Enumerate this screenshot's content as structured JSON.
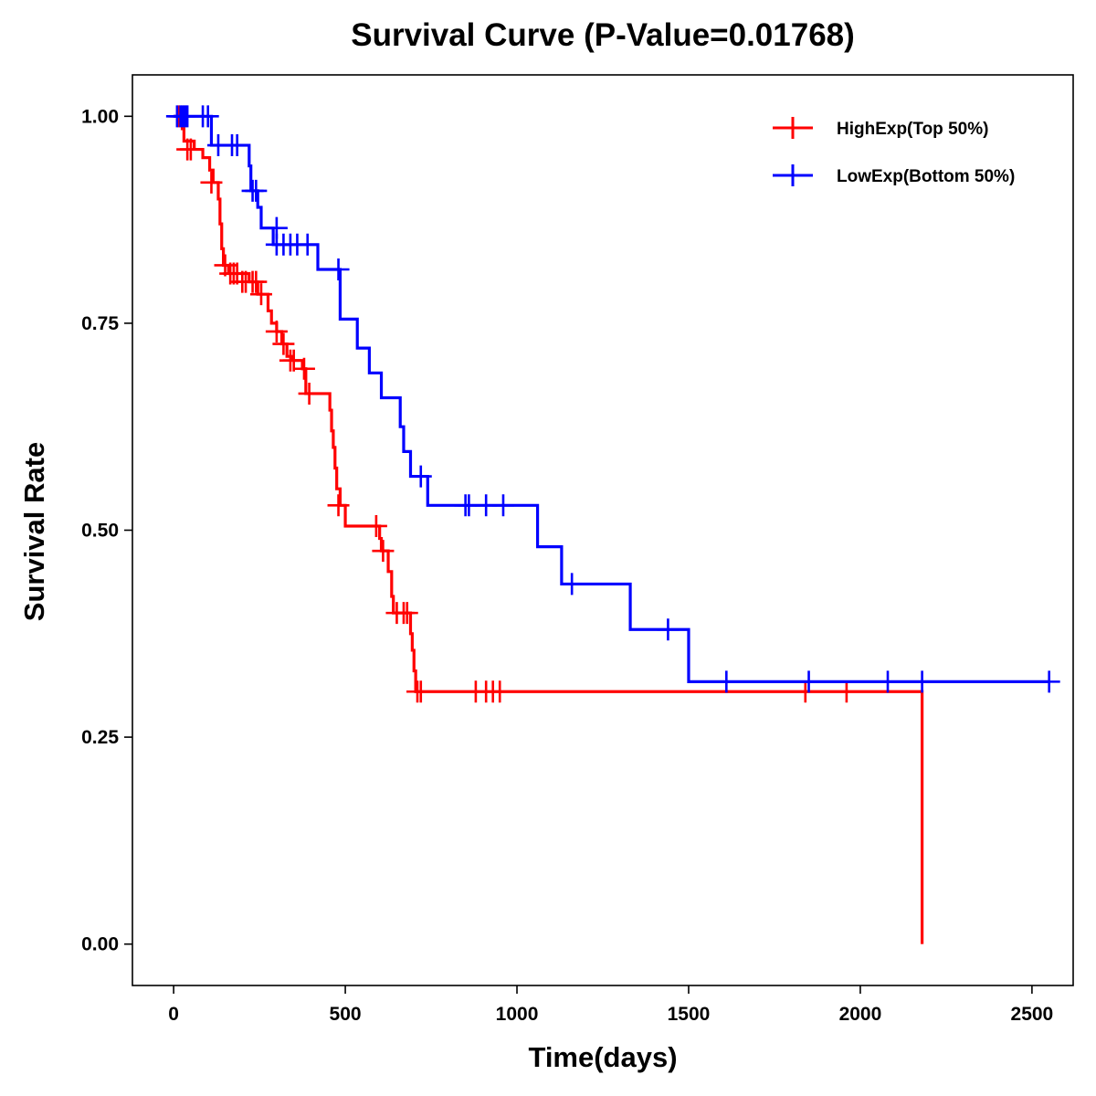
{
  "chart_data": {
    "type": "line",
    "subtype": "kaplan-meier",
    "title": "Survival Curve (P-Value=0.01768)",
    "xlabel": "Time(days)",
    "ylabel": "Survival Rate",
    "xlim": [
      -120,
      2620
    ],
    "ylim": [
      -0.05,
      1.05
    ],
    "xticks": [
      0,
      500,
      1000,
      1500,
      2000,
      2500
    ],
    "xtick_labels": [
      "0",
      "500",
      "1000",
      "1500",
      "2000",
      "2500"
    ],
    "yticks": [
      0.0,
      0.25,
      0.5,
      0.75,
      1.0
    ],
    "ytick_labels": [
      "0.00",
      "0.25",
      "0.50",
      "0.75",
      "1.00"
    ],
    "grid": false,
    "legend_position": "top-right",
    "series": [
      {
        "name": "HighExp(Top 50%)",
        "color": "#ff0000",
        "steps": [
          [
            0,
            1.0
          ],
          [
            25,
            0.985
          ],
          [
            30,
            0.97
          ],
          [
            60,
            0.96
          ],
          [
            85,
            0.95
          ],
          [
            105,
            0.935
          ],
          [
            115,
            0.92
          ],
          [
            130,
            0.9
          ],
          [
            135,
            0.87
          ],
          [
            140,
            0.84
          ],
          [
            145,
            0.82
          ],
          [
            160,
            0.81
          ],
          [
            220,
            0.8
          ],
          [
            245,
            0.785
          ],
          [
            275,
            0.765
          ],
          [
            285,
            0.75
          ],
          [
            300,
            0.74
          ],
          [
            315,
            0.725
          ],
          [
            330,
            0.71
          ],
          [
            345,
            0.705
          ],
          [
            375,
            0.695
          ],
          [
            385,
            0.665
          ],
          [
            455,
            0.645
          ],
          [
            460,
            0.62
          ],
          [
            465,
            0.6
          ],
          [
            470,
            0.575
          ],
          [
            475,
            0.55
          ],
          [
            485,
            0.53
          ],
          [
            500,
            0.505
          ],
          [
            600,
            0.49
          ],
          [
            605,
            0.475
          ],
          [
            625,
            0.45
          ],
          [
            635,
            0.42
          ],
          [
            640,
            0.4
          ],
          [
            690,
            0.375
          ],
          [
            695,
            0.355
          ],
          [
            700,
            0.33
          ],
          [
            705,
            0.305
          ],
          [
            2180,
            0.0
          ]
        ],
        "end_x": 2180,
        "censor": [
          [
            15,
            1.0
          ],
          [
            40,
            0.96
          ],
          [
            50,
            0.96
          ],
          [
            110,
            0.92
          ],
          [
            150,
            0.82
          ],
          [
            165,
            0.81
          ],
          [
            175,
            0.81
          ],
          [
            185,
            0.81
          ],
          [
            200,
            0.8
          ],
          [
            210,
            0.8
          ],
          [
            230,
            0.8
          ],
          [
            240,
            0.8
          ],
          [
            255,
            0.785
          ],
          [
            300,
            0.74
          ],
          [
            320,
            0.725
          ],
          [
            340,
            0.705
          ],
          [
            350,
            0.705
          ],
          [
            380,
            0.695
          ],
          [
            395,
            0.665
          ],
          [
            480,
            0.53
          ],
          [
            590,
            0.505
          ],
          [
            610,
            0.475
          ],
          [
            650,
            0.4
          ],
          [
            670,
            0.4
          ],
          [
            680,
            0.4
          ],
          [
            710,
            0.305
          ],
          [
            720,
            0.305
          ],
          [
            880,
            0.305
          ],
          [
            910,
            0.305
          ],
          [
            930,
            0.305
          ],
          [
            950,
            0.305
          ],
          [
            1840,
            0.305
          ],
          [
            1960,
            0.305
          ]
        ]
      },
      {
        "name": "LowExp(Bottom 50%)",
        "color": "#0000ff",
        "steps": [
          [
            0,
            1.0
          ],
          [
            110,
            0.965
          ],
          [
            220,
            0.94
          ],
          [
            225,
            0.91
          ],
          [
            245,
            0.89
          ],
          [
            255,
            0.865
          ],
          [
            290,
            0.845
          ],
          [
            420,
            0.815
          ],
          [
            485,
            0.755
          ],
          [
            535,
            0.72
          ],
          [
            570,
            0.69
          ],
          [
            605,
            0.66
          ],
          [
            660,
            0.625
          ],
          [
            670,
            0.595
          ],
          [
            690,
            0.565
          ],
          [
            740,
            0.53
          ],
          [
            1060,
            0.48
          ],
          [
            1130,
            0.435
          ],
          [
            1330,
            0.38
          ],
          [
            1500,
            0.317
          ]
        ],
        "end_x": 2550,
        "censor": [
          [
            10,
            1.0
          ],
          [
            20,
            1.0
          ],
          [
            25,
            1.0
          ],
          [
            30,
            1.0
          ],
          [
            35,
            1.0
          ],
          [
            40,
            1.0
          ],
          [
            85,
            1.0
          ],
          [
            100,
            1.0
          ],
          [
            130,
            0.965
          ],
          [
            170,
            0.965
          ],
          [
            185,
            0.965
          ],
          [
            230,
            0.91
          ],
          [
            240,
            0.91
          ],
          [
            300,
            0.865
          ],
          [
            300,
            0.845
          ],
          [
            320,
            0.845
          ],
          [
            340,
            0.845
          ],
          [
            360,
            0.845
          ],
          [
            390,
            0.845
          ],
          [
            480,
            0.815
          ],
          [
            720,
            0.565
          ],
          [
            850,
            0.53
          ],
          [
            860,
            0.53
          ],
          [
            910,
            0.53
          ],
          [
            960,
            0.53
          ],
          [
            1160,
            0.435
          ],
          [
            1440,
            0.38
          ],
          [
            1610,
            0.317
          ],
          [
            1850,
            0.317
          ],
          [
            2080,
            0.317
          ],
          [
            2180,
            0.317
          ],
          [
            2550,
            0.317
          ]
        ]
      }
    ]
  }
}
